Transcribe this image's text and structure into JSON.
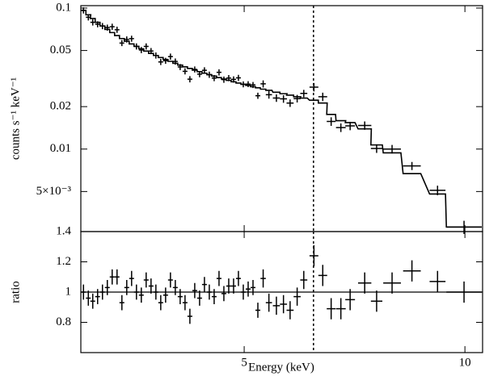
{
  "chart_data": [
    {
      "type": "errorbar",
      "yscale": "log",
      "ylabel": "counts s⁻¹ keV⁻¹",
      "color": "#000000",
      "xlim": [
        1.3,
        10.4
      ],
      "ylim": [
        0.0026,
        0.104
      ],
      "yticks": [
        0.1,
        0.05,
        0.02,
        0.01,
        {
          "value": 0.005,
          "label": "5×10⁻³"
        }
      ],
      "vline": 6.57,
      "x": [
        1.36,
        1.47,
        1.57,
        1.68,
        1.79,
        1.9,
        2.01,
        2.12,
        2.23,
        2.34,
        2.45,
        2.56,
        2.67,
        2.78,
        2.89,
        3.0,
        3.11,
        3.22,
        3.33,
        3.44,
        3.55,
        3.66,
        3.77,
        3.88,
        3.99,
        4.1,
        4.21,
        4.32,
        4.43,
        4.54,
        4.65,
        4.76,
        4.87,
        4.98,
        5.09,
        5.2,
        5.31,
        5.43,
        5.56,
        5.73,
        5.89,
        6.04,
        6.2,
        6.35,
        6.58,
        6.78,
        6.97,
        7.19,
        7.4,
        7.73,
        8.0,
        8.35,
        8.8,
        9.38,
        9.98
      ],
      "xerr": [
        0.055,
        0.055,
        0.055,
        0.055,
        0.055,
        0.055,
        0.055,
        0.055,
        0.055,
        0.055,
        0.055,
        0.055,
        0.055,
        0.055,
        0.055,
        0.055,
        0.055,
        0.055,
        0.055,
        0.055,
        0.055,
        0.055,
        0.055,
        0.055,
        0.055,
        0.055,
        0.055,
        0.055,
        0.055,
        0.055,
        0.055,
        0.055,
        0.055,
        0.055,
        0.055,
        0.055,
        0.055,
        0.06,
        0.07,
        0.08,
        0.08,
        0.08,
        0.08,
        0.08,
        0.1,
        0.1,
        0.1,
        0.11,
        0.11,
        0.15,
        0.13,
        0.2,
        0.2,
        0.18,
        0.4
      ],
      "values": [
        0.0963,
        0.086,
        0.0792,
        0.0768,
        0.0746,
        0.0727,
        0.0737,
        0.0702,
        0.0565,
        0.0599,
        0.0607,
        0.0535,
        0.0504,
        0.0535,
        0.0496,
        0.0461,
        0.0415,
        0.0423,
        0.0453,
        0.0418,
        0.0382,
        0.0356,
        0.0313,
        0.0367,
        0.034,
        0.0362,
        0.0337,
        0.0319,
        0.035,
        0.0311,
        0.0319,
        0.0312,
        0.032,
        0.0288,
        0.0289,
        0.0285,
        0.0239,
        0.029,
        0.0243,
        0.023,
        0.0227,
        0.0212,
        0.0228,
        0.0248,
        0.0275,
        0.0235,
        0.0157,
        0.0142,
        0.0146,
        0.0147,
        0.0101,
        0.01,
        0.0076,
        0.0051,
        0.0028
      ],
      "yerr": [
        0.0048,
        0.0043,
        0.004,
        0.0038,
        0.0037,
        0.0036,
        0.0037,
        0.0035,
        0.0028,
        0.003,
        0.003,
        0.0027,
        0.0025,
        0.0027,
        0.0025,
        0.0023,
        0.0021,
        0.0021,
        0.0023,
        0.0021,
        0.0019,
        0.0018,
        0.0016,
        0.0018,
        0.0017,
        0.0018,
        0.0017,
        0.0016,
        0.0018,
        0.0016,
        0.0016,
        0.0016,
        0.0016,
        0.0014,
        0.0014,
        0.0014,
        0.0012,
        0.0017,
        0.0015,
        0.0014,
        0.0014,
        0.0013,
        0.0014,
        0.0015,
        0.0019,
        0.0016,
        0.0011,
        0.001,
        0.001,
        0.001,
        0.0007,
        0.0007,
        0.0005,
        0.0004,
        0.0003
      ],
      "model": [
        0.0963,
        0.0896,
        0.0843,
        0.0792,
        0.0746,
        0.0706,
        0.067,
        0.0638,
        0.0608,
        0.0582,
        0.0557,
        0.0535,
        0.0514,
        0.0495,
        0.0477,
        0.0461,
        0.0446,
        0.0432,
        0.0419,
        0.0406,
        0.0394,
        0.0383,
        0.0373,
        0.0363,
        0.0354,
        0.0345,
        0.0337,
        0.0329,
        0.0321,
        0.0314,
        0.0307,
        0.03,
        0.0294,
        0.0288,
        0.0283,
        0.0277,
        0.0272,
        0.0266,
        0.0261,
        0.0253,
        0.0247,
        0.0241,
        0.0235,
        0.023,
        0.0222,
        0.0212,
        0.0176,
        0.0159,
        0.0154,
        0.0139,
        0.0107,
        0.0094,
        0.0067,
        0.0048,
        0.0028
      ]
    },
    {
      "type": "errorbar",
      "yscale": "linear",
      "ylabel": "ratio",
      "xlabel": "Energy (keV)",
      "color": "#000000",
      "xlim": [
        1.3,
        10.4
      ],
      "ylim": [
        0.6,
        1.4
      ],
      "xticks": [
        5,
        10
      ],
      "yticks": [
        0.8,
        1,
        1.2,
        1.4
      ],
      "hline": 1,
      "vline": 6.57,
      "x": [
        1.36,
        1.47,
        1.57,
        1.68,
        1.79,
        1.9,
        2.01,
        2.12,
        2.23,
        2.34,
        2.45,
        2.56,
        2.67,
        2.78,
        2.89,
        3.0,
        3.11,
        3.22,
        3.33,
        3.44,
        3.55,
        3.66,
        3.77,
        3.88,
        3.99,
        4.1,
        4.21,
        4.32,
        4.43,
        4.54,
        4.65,
        4.76,
        4.87,
        4.98,
        5.09,
        5.2,
        5.31,
        5.43,
        5.56,
        5.73,
        5.89,
        6.04,
        6.2,
        6.35,
        6.58,
        6.78,
        6.97,
        7.19,
        7.4,
        7.73,
        8.0,
        8.35,
        8.8,
        9.38,
        9.98
      ],
      "xerr": [
        0.055,
        0.055,
        0.055,
        0.055,
        0.055,
        0.055,
        0.055,
        0.055,
        0.055,
        0.055,
        0.055,
        0.055,
        0.055,
        0.055,
        0.055,
        0.055,
        0.055,
        0.055,
        0.055,
        0.055,
        0.055,
        0.055,
        0.055,
        0.055,
        0.055,
        0.055,
        0.055,
        0.055,
        0.055,
        0.055,
        0.055,
        0.055,
        0.055,
        0.055,
        0.055,
        0.055,
        0.055,
        0.06,
        0.07,
        0.08,
        0.08,
        0.08,
        0.08,
        0.08,
        0.1,
        0.1,
        0.1,
        0.11,
        0.11,
        0.15,
        0.13,
        0.2,
        0.2,
        0.18,
        0.4
      ],
      "values": [
        1.0,
        0.96,
        0.94,
        0.97,
        1.0,
        1.03,
        1.1,
        1.1,
        0.93,
        1.03,
        1.09,
        1.0,
        0.98,
        1.08,
        1.04,
        1.0,
        0.93,
        0.98,
        1.08,
        1.03,
        0.97,
        0.93,
        0.84,
        1.01,
        0.96,
        1.05,
        1.0,
        0.97,
        1.09,
        0.99,
        1.04,
        1.04,
        1.09,
        1.0,
        1.02,
        1.03,
        0.88,
        1.09,
        0.93,
        0.91,
        0.92,
        0.88,
        0.97,
        1.08,
        1.24,
        1.11,
        0.89,
        0.89,
        0.95,
        1.06,
        0.94,
        1.06,
        1.14,
        1.07,
        1.0
      ],
      "yerr": [
        0.05,
        0.05,
        0.05,
        0.05,
        0.05,
        0.05,
        0.05,
        0.05,
        0.05,
        0.05,
        0.05,
        0.05,
        0.05,
        0.05,
        0.05,
        0.05,
        0.05,
        0.05,
        0.05,
        0.05,
        0.05,
        0.05,
        0.05,
        0.05,
        0.05,
        0.05,
        0.05,
        0.05,
        0.05,
        0.05,
        0.05,
        0.05,
        0.05,
        0.05,
        0.05,
        0.05,
        0.05,
        0.06,
        0.06,
        0.06,
        0.06,
        0.06,
        0.06,
        0.06,
        0.07,
        0.07,
        0.07,
        0.07,
        0.07,
        0.07,
        0.07,
        0.07,
        0.07,
        0.07,
        0.07
      ]
    }
  ]
}
